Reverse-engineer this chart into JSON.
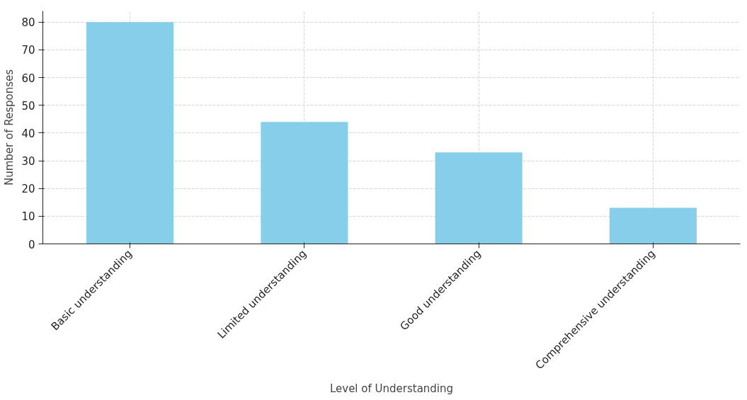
{
  "chart_data": {
    "type": "bar",
    "xlabel": "Level of Understanding",
    "ylabel": "Number of Responses",
    "categories": [
      "Basic understanding",
      "Limited understanding",
      "Good understanding",
      "Comprehensive understanding"
    ],
    "values": [
      80,
      44,
      33,
      13
    ],
    "color": "#87ceeb",
    "ylim": [
      0,
      84
    ],
    "yticks": [
      0,
      10,
      20,
      30,
      40,
      50,
      60,
      70,
      80
    ],
    "grid": true
  }
}
